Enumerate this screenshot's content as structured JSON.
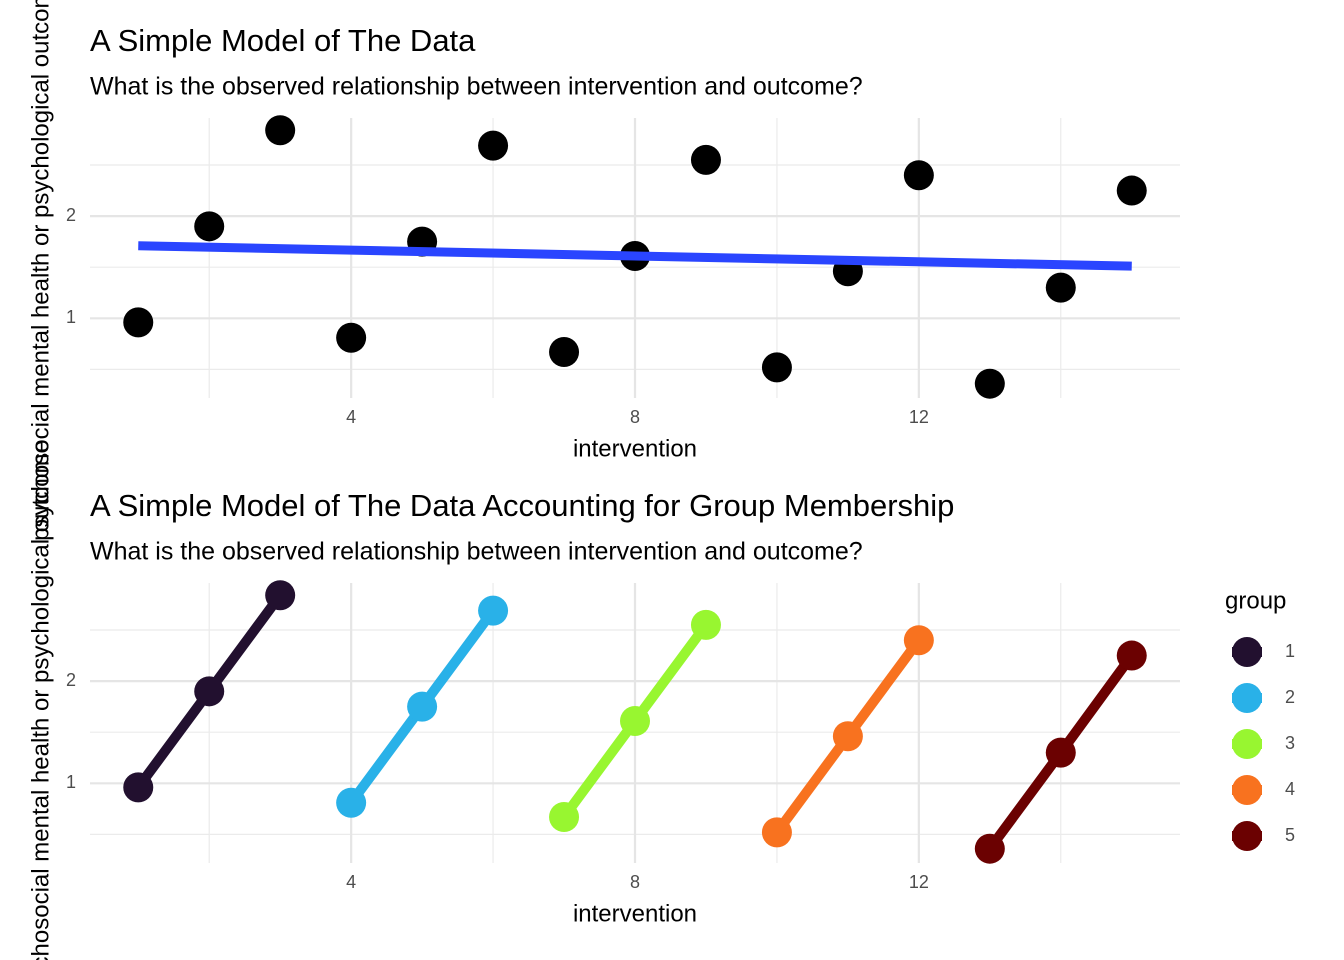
{
  "chart_data": [
    {
      "type": "scatter",
      "title": "A Simple Model of The Data",
      "subtitle": "What is the observed relationship between intervention and outcome?",
      "xlabel": "intervention",
      "ylabel": "psychosocial mental health or psychological outcome",
      "x": [
        1,
        2,
        3,
        4,
        5,
        6,
        7,
        8,
        9,
        10,
        11,
        12,
        13,
        14,
        15
      ],
      "values": [
        0.96,
        1.9,
        2.84,
        0.81,
        1.75,
        2.69,
        0.67,
        1.61,
        2.55,
        0.52,
        1.46,
        2.4,
        0.36,
        1.3,
        2.25
      ],
      "color": "#000000",
      "fit": {
        "x": [
          1,
          15
        ],
        "values": [
          1.71,
          1.51
        ],
        "color": "#2a45ff"
      },
      "xlim": [
        0.32,
        15.68
      ],
      "ylim": [
        0.22,
        2.96
      ],
      "xticks": [
        4,
        8,
        12
      ],
      "yticks": [
        1,
        2
      ],
      "minor_xgrid": [
        2,
        6,
        10,
        14
      ],
      "minor_ygrid": [
        0.5,
        1.5,
        2.5
      ],
      "grid": true
    },
    {
      "type": "line",
      "title": "A Simple Model of The Data Accounting for Group Membership",
      "subtitle": "What is the observed relationship between intervention and outcome?",
      "xlabel": "intervention",
      "ylabel": "psychosocial mental health or psychological outcome",
      "legend_title": "group",
      "series": [
        {
          "name": "1",
          "color": "#22102f",
          "x": [
            1,
            2,
            3
          ],
          "values": [
            0.96,
            1.9,
            2.84
          ]
        },
        {
          "name": "2",
          "color": "#29b1e8",
          "x": [
            4,
            5,
            6
          ],
          "values": [
            0.81,
            1.75,
            2.69
          ]
        },
        {
          "name": "3",
          "color": "#98f630",
          "x": [
            7,
            8,
            9
          ],
          "values": [
            0.67,
            1.61,
            2.55
          ]
        },
        {
          "name": "4",
          "color": "#f8721f",
          "x": [
            10,
            11,
            12
          ],
          "values": [
            0.52,
            1.46,
            2.4
          ]
        },
        {
          "name": "5",
          "color": "#6b0101",
          "x": [
            13,
            14,
            15
          ],
          "values": [
            0.36,
            1.3,
            2.25
          ]
        }
      ],
      "xlim": [
        0.32,
        15.68
      ],
      "ylim": [
        0.22,
        2.96
      ],
      "xticks": [
        4,
        8,
        12
      ],
      "yticks": [
        1,
        2
      ],
      "minor_xgrid": [
        2,
        6,
        10,
        14
      ],
      "minor_ygrid": [
        0.5,
        1.5,
        2.5
      ],
      "grid": true
    }
  ]
}
